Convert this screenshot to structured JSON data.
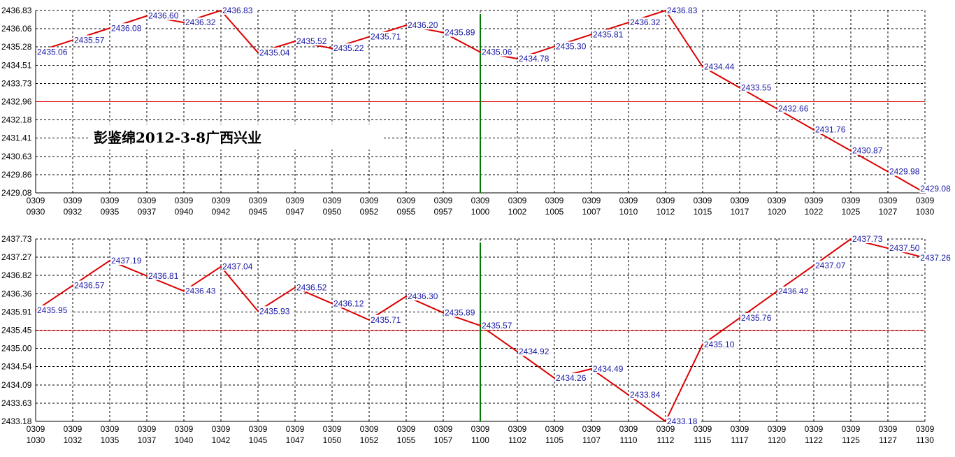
{
  "watermark": "彭鉴绵2012-3-8广西兴业",
  "colors": {
    "line": "#dd0000",
    "reference": "#dd0000",
    "divider": "#007700",
    "label": "#1a1aa6",
    "grid": "#000000"
  },
  "chart_data": [
    {
      "type": "line",
      "grid": true,
      "x_tick_top": [
        "0309",
        "0309",
        "0309",
        "0309",
        "0309",
        "0309",
        "0309",
        "0309",
        "0309",
        "0309",
        "0309",
        "0309",
        "0309",
        "0309",
        "0309",
        "0309",
        "0309",
        "0309",
        "0309",
        "0309",
        "0309",
        "0309",
        "0309",
        "0309",
        "0309"
      ],
      "x_tick_bottom": [
        "0930",
        "0932",
        "0935",
        "0937",
        "0940",
        "0942",
        "0945",
        "0947",
        "0950",
        "0952",
        "0955",
        "0957",
        "1000",
        "1002",
        "1005",
        "1007",
        "1010",
        "1012",
        "1015",
        "1017",
        "1020",
        "1022",
        "1025",
        "1027",
        "1030"
      ],
      "y_ticks": [
        "2436.83",
        "2436.06",
        "2435.28",
        "2434.51",
        "2433.73",
        "2432.96",
        "2432.18",
        "2431.41",
        "2430.63",
        "2429.86",
        "2429.08"
      ],
      "ylim": [
        2429.08,
        2436.83
      ],
      "reference_line": 2432.96,
      "divider_index": 12,
      "points": [
        {
          "x": 0,
          "y": 2435.06,
          "label": "2435.06"
        },
        {
          "x": 1,
          "y": 2435.57,
          "label": "2435.57"
        },
        {
          "x": 2,
          "y": 2436.08,
          "label": "2436.08"
        },
        {
          "x": 3,
          "y": 2436.6,
          "label": "2436.60"
        },
        {
          "x": 4,
          "y": 2436.32,
          "label": "2436.32"
        },
        {
          "x": 5,
          "y": 2436.83,
          "label": "2436.83"
        },
        {
          "x": 6,
          "y": 2435.04,
          "label": "2435.04"
        },
        {
          "x": 7,
          "y": 2435.52,
          "label": "2435.52"
        },
        {
          "x": 8,
          "y": 2435.22,
          "label": "2435.22"
        },
        {
          "x": 9,
          "y": 2435.71,
          "label": "2435.71"
        },
        {
          "x": 10,
          "y": 2436.2,
          "label": "2436.20"
        },
        {
          "x": 11,
          "y": 2435.89,
          "label": "2435.89"
        },
        {
          "x": 12,
          "y": 2435.06,
          "label": "2435.06"
        },
        {
          "x": 13,
          "y": 2434.78,
          "label": "2434.78"
        },
        {
          "x": 14,
          "y": 2435.3,
          "label": "2435.30"
        },
        {
          "x": 15,
          "y": 2435.81,
          "label": "2435.81"
        },
        {
          "x": 16,
          "y": 2436.32,
          "label": "2436.32"
        },
        {
          "x": 17,
          "y": 2436.83,
          "label": "2436.83"
        },
        {
          "x": 18,
          "y": 2434.44,
          "label": "2434.44"
        },
        {
          "x": 19,
          "y": 2433.55,
          "label": "2433.55"
        },
        {
          "x": 20,
          "y": 2432.66,
          "label": "2432.66"
        },
        {
          "x": 21,
          "y": 2431.76,
          "label": "2431.76"
        },
        {
          "x": 22,
          "y": 2430.87,
          "label": "2430.87"
        },
        {
          "x": 23,
          "y": 2429.98,
          "label": "2429.98"
        },
        {
          "x": 24,
          "y": 2429.08,
          "label": "2429.08"
        }
      ]
    },
    {
      "type": "line",
      "grid": true,
      "x_tick_top": [
        "0309",
        "0309",
        "0309",
        "0309",
        "0309",
        "0309",
        "0309",
        "0309",
        "0309",
        "0309",
        "0309",
        "0309",
        "0309",
        "0309",
        "0309",
        "0309",
        "0309",
        "0309",
        "0309",
        "0309",
        "0309",
        "0309",
        "0309",
        "0309",
        "0309"
      ],
      "x_tick_bottom": [
        "1030",
        "1032",
        "1035",
        "1037",
        "1040",
        "1042",
        "1045",
        "1047",
        "1050",
        "1052",
        "1055",
        "1057",
        "1100",
        "1102",
        "1105",
        "1107",
        "1110",
        "1112",
        "1115",
        "1117",
        "1120",
        "1122",
        "1125",
        "1127",
        "1130"
      ],
      "y_ticks": [
        "2437.73",
        "2437.27",
        "2436.82",
        "2436.36",
        "2435.91",
        "2435.45",
        "2435.00",
        "2434.54",
        "2434.09",
        "2433.63",
        "2433.18"
      ],
      "ylim": [
        2433.18,
        2437.73
      ],
      "reference_line": 2435.45,
      "divider_index": 12,
      "points": [
        {
          "x": 0,
          "y": 2435.95,
          "label": "2435.95"
        },
        {
          "x": 1,
          "y": 2436.57,
          "label": "2436.57"
        },
        {
          "x": 2,
          "y": 2437.19,
          "label": "2437.19"
        },
        {
          "x": 3,
          "y": 2436.81,
          "label": "2436.81"
        },
        {
          "x": 4,
          "y": 2436.43,
          "label": "2436.43"
        },
        {
          "x": 5,
          "y": 2437.04,
          "label": "2437.04"
        },
        {
          "x": 6,
          "y": 2435.93,
          "label": "2435.93"
        },
        {
          "x": 7,
          "y": 2436.52,
          "label": "2436.52"
        },
        {
          "x": 8,
          "y": 2436.12,
          "label": "2436.12"
        },
        {
          "x": 9,
          "y": 2435.71,
          "label": "2435.71"
        },
        {
          "x": 10,
          "y": 2436.3,
          "label": "2436.30"
        },
        {
          "x": 11,
          "y": 2435.89,
          "label": "2435.89"
        },
        {
          "x": 12,
          "y": 2435.57,
          "label": "2435.57"
        },
        {
          "x": 13,
          "y": 2434.92,
          "label": "2434.92"
        },
        {
          "x": 14,
          "y": 2434.26,
          "label": "2434.26"
        },
        {
          "x": 15,
          "y": 2434.49,
          "label": "2434.49"
        },
        {
          "x": 16,
          "y": 2433.84,
          "label": "2433.84"
        },
        {
          "x": 17,
          "y": 2433.18,
          "label": "2433.18"
        },
        {
          "x": 18,
          "y": 2435.1,
          "label": "2435.10"
        },
        {
          "x": 19,
          "y": 2435.76,
          "label": "2435.76"
        },
        {
          "x": 20,
          "y": 2436.42,
          "label": "2436.42"
        },
        {
          "x": 21,
          "y": 2437.07,
          "label": "2437.07"
        },
        {
          "x": 22,
          "y": 2437.73,
          "label": "2437.73"
        },
        {
          "x": 23,
          "y": 2437.5,
          "label": "2437.50"
        },
        {
          "x": 24,
          "y": 2437.26,
          "label": "2437.26"
        }
      ]
    }
  ]
}
